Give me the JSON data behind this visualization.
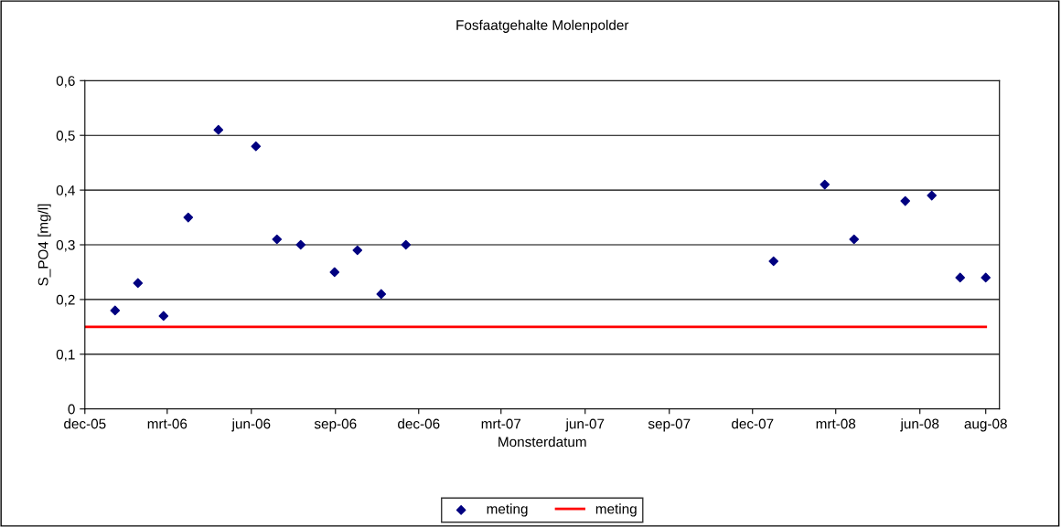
{
  "chart_data": {
    "type": "scatter",
    "title": "Fosfaatgehalte Molenpolder",
    "xlabel": "Monsterdatum",
    "ylabel": "S_PO4 [mg/l]",
    "series": [
      {
        "name": "meting",
        "color": "#000080",
        "marker": "diamond",
        "x": [
          "2006-01-03",
          "2006-01-28",
          "2006-02-25",
          "2006-03-24",
          "2006-04-26",
          "2006-06-06",
          "2006-06-29",
          "2006-07-25",
          "2006-08-31",
          "2006-09-25",
          "2006-10-21",
          "2006-11-17",
          "2007-12-24",
          "2008-02-18",
          "2008-03-21",
          "2008-05-16",
          "2008-06-14",
          "2008-07-15",
          "2008-08-12"
        ],
        "values": [
          0.18,
          0.23,
          0.17,
          0.35,
          0.51,
          0.48,
          0.31,
          0.3,
          0.25,
          0.29,
          0.21,
          0.3,
          0.27,
          0.41,
          0.31,
          0.38,
          0.39,
          0.24,
          0.24
        ]
      },
      {
        "name": "meting",
        "type": "line",
        "color": "#ff0000",
        "marker": "none",
        "line_style": "solid",
        "x": [
          "2005-12-01",
          "2008-08-12"
        ],
        "values": [
          0.15,
          0.15
        ]
      }
    ],
    "xlim": [
      "2005-12-01",
      "2008-08-27"
    ],
    "xticks": [
      {
        "value": "2005-12-01",
        "label": "dec-05"
      },
      {
        "value": "2006-03-01",
        "label": "mrt-06"
      },
      {
        "value": "2006-06-01",
        "label": "jun-06"
      },
      {
        "value": "2006-09-01",
        "label": "sep-06"
      },
      {
        "value": "2006-12-01",
        "label": "dec-06"
      },
      {
        "value": "2007-03-01",
        "label": "mrt-07"
      },
      {
        "value": "2007-06-01",
        "label": "jun-07"
      },
      {
        "value": "2007-09-01",
        "label": "sep-07"
      },
      {
        "value": "2007-12-01",
        "label": "dec-07"
      },
      {
        "value": "2008-03-01",
        "label": "mrt-08"
      },
      {
        "value": "2008-06-01",
        "label": "jun-08"
      },
      {
        "value": "2008-08-12",
        "label": "aug-08"
      }
    ],
    "ylim": [
      0,
      0.6
    ],
    "yticks": [
      0,
      {
        "value": 0.1,
        "label": "0,1"
      },
      {
        "value": 0.2,
        "label": "0,2"
      },
      {
        "value": 0.3,
        "label": "0,3"
      },
      {
        "value": 0.4,
        "label": "0,4"
      },
      {
        "value": 0.5,
        "label": "0,5"
      },
      {
        "value": 0.6,
        "label": "0,6"
      }
    ],
    "grid": "y",
    "legend": "bottom"
  }
}
